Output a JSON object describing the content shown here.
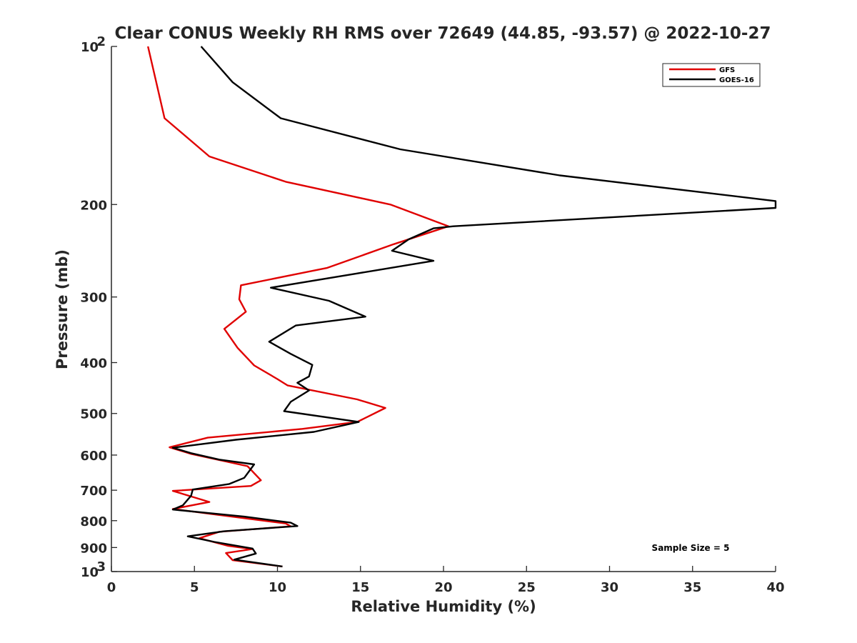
{
  "chart_data": {
    "type": "line",
    "title": "Clear CONUS Weekly RH RMS over 72649 (44.85, -93.57) @ 2022-10-27",
    "xlabel": "Relative Humidity (%)",
    "ylabel": "Pressure (mb)",
    "xlim": [
      0,
      40
    ],
    "ylim": [
      100,
      1000
    ],
    "yscale": "log",
    "y_reversed": true,
    "xticks": [
      0,
      5,
      10,
      15,
      20,
      25,
      30,
      35,
      40
    ],
    "yticks": [
      {
        "value": 100,
        "label": "10",
        "sup": "2"
      },
      {
        "value": 200,
        "label": "200"
      },
      {
        "value": 300,
        "label": "300"
      },
      {
        "value": 400,
        "label": "400"
      },
      {
        "value": 500,
        "label": "500"
      },
      {
        "value": 600,
        "label": "600"
      },
      {
        "value": 700,
        "label": "700"
      },
      {
        "value": 800,
        "label": "800"
      },
      {
        "value": 900,
        "label": "900"
      },
      {
        "value": 1000,
        "label": "10",
        "sup": "3"
      }
    ],
    "grid": false,
    "legend_position": "top-right",
    "annotation": "Sample Size = 5",
    "series": [
      {
        "name": "GFS",
        "color": "#e00000",
        "points": [
          [
            2.2,
            100
          ],
          [
            2.7,
            117
          ],
          [
            3.2,
            137
          ],
          [
            5.9,
            162
          ],
          [
            10.5,
            181
          ],
          [
            16.8,
            200
          ],
          [
            20.3,
            220
          ],
          [
            17.0,
            238
          ],
          [
            13.0,
            264
          ],
          [
            7.8,
            285
          ],
          [
            7.7,
            303
          ],
          [
            8.1,
            320
          ],
          [
            6.8,
            345
          ],
          [
            7.6,
            375
          ],
          [
            8.6,
            405
          ],
          [
            10.0,
            430
          ],
          [
            10.6,
            442
          ],
          [
            14.8,
            470
          ],
          [
            16.5,
            488
          ],
          [
            15.5,
            506
          ],
          [
            14.8,
            519
          ],
          [
            11.5,
            535
          ],
          [
            5.8,
            556
          ],
          [
            3.5,
            580
          ],
          [
            4.8,
            597
          ],
          [
            8.2,
            630
          ],
          [
            9.0,
            670
          ],
          [
            8.4,
            687
          ],
          [
            3.7,
            702
          ],
          [
            5.9,
            737
          ],
          [
            3.7,
            760
          ],
          [
            6.2,
            778
          ],
          [
            10.5,
            810
          ],
          [
            10.8,
            820
          ],
          [
            6.5,
            840
          ],
          [
            5.3,
            864
          ],
          [
            7.0,
            893
          ],
          [
            8.5,
            906
          ],
          [
            6.9,
            922
          ],
          [
            7.3,
            951
          ],
          [
            10.3,
            978
          ]
        ]
      },
      {
        "name": "GOES-16",
        "color": "#000000",
        "points": [
          [
            5.4,
            100
          ],
          [
            7.3,
            117
          ],
          [
            10.2,
            137
          ],
          [
            17.4,
            157
          ],
          [
            27.0,
            176
          ],
          [
            40.0,
            197
          ],
          [
            40.0,
            203
          ],
          [
            20.6,
            220
          ],
          [
            19.4,
            222
          ],
          [
            17.9,
            233
          ],
          [
            16.9,
            245
          ],
          [
            19.4,
            256
          ],
          [
            9.6,
            288
          ],
          [
            13.1,
            305
          ],
          [
            15.3,
            327
          ],
          [
            11.1,
            340
          ],
          [
            9.5,
            365
          ],
          [
            10.8,
            385
          ],
          [
            12.1,
            404
          ],
          [
            11.9,
            425
          ],
          [
            11.2,
            437
          ],
          [
            11.9,
            452
          ],
          [
            10.8,
            475
          ],
          [
            10.4,
            495
          ],
          [
            14.9,
            519
          ],
          [
            12.2,
            542
          ],
          [
            7.5,
            561
          ],
          [
            3.7,
            581
          ],
          [
            4.8,
            595
          ],
          [
            6.5,
            612
          ],
          [
            8.6,
            625
          ],
          [
            8.0,
            663
          ],
          [
            7.1,
            681
          ],
          [
            4.9,
            698
          ],
          [
            4.8,
            717
          ],
          [
            4.3,
            748
          ],
          [
            3.7,
            762
          ],
          [
            8.0,
            786
          ],
          [
            10.8,
            807
          ],
          [
            11.2,
            819
          ],
          [
            6.8,
            838
          ],
          [
            4.6,
            857
          ],
          [
            6.2,
            878
          ],
          [
            8.5,
            904
          ],
          [
            8.7,
            924
          ],
          [
            7.4,
            949
          ],
          [
            10.3,
            978
          ]
        ]
      }
    ]
  }
}
